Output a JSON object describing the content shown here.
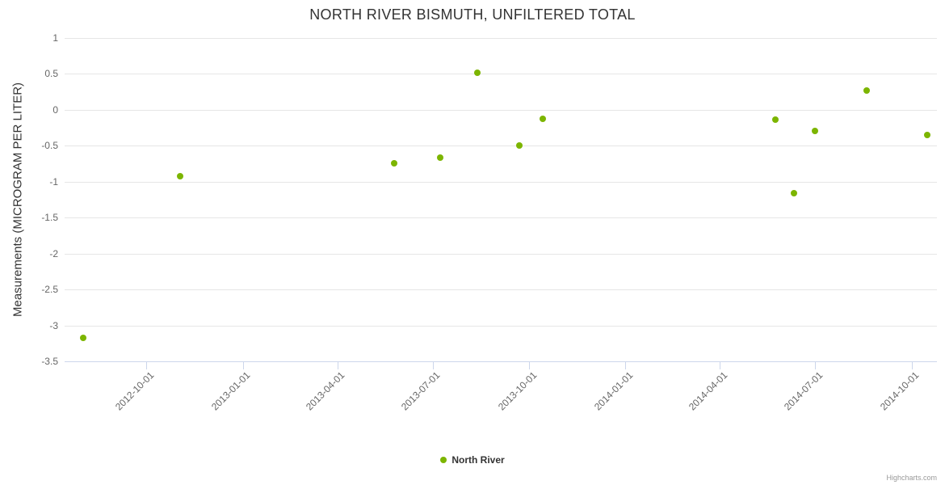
{
  "title": "NORTH RIVER BISMUTH, UNFILTERED TOTAL",
  "credits": "Highcharts.com",
  "legend": {
    "items": [
      {
        "label": "North River",
        "color": "#7cb500"
      }
    ]
  },
  "chart_data": {
    "type": "scatter",
    "title": "NORTH RIVER BISMUTH, UNFILTERED TOTAL",
    "xlabel": "",
    "ylabel": "Measurements (MICROGRAM PER LITER)",
    "ylim": [
      -3.5,
      1
    ],
    "y_ticks": [
      1,
      0.5,
      0,
      -0.5,
      -1,
      -1.5,
      -2,
      -2.5,
      -3,
      -3.5
    ],
    "x_ticks": [
      "2012-10-01",
      "2013-01-01",
      "2013-04-01",
      "2013-07-01",
      "2013-10-01",
      "2014-01-01",
      "2014-04-01",
      "2014-07-01",
      "2014-10-01"
    ],
    "x_range": [
      "2012-07-15",
      "2014-10-25"
    ],
    "grid": true,
    "legend_position": "bottom",
    "series": [
      {
        "name": "North River",
        "color": "#7cb500",
        "points": [
          {
            "date": "2012-08-02",
            "value": -3.17
          },
          {
            "date": "2012-11-02",
            "value": -0.92
          },
          {
            "date": "2013-05-25",
            "value": -0.74
          },
          {
            "date": "2013-07-08",
            "value": -0.67
          },
          {
            "date": "2013-08-13",
            "value": 0.52
          },
          {
            "date": "2013-09-22",
            "value": -0.5
          },
          {
            "date": "2013-10-14",
            "value": -0.13
          },
          {
            "date": "2014-05-24",
            "value": -0.14
          },
          {
            "date": "2014-06-11",
            "value": -1.16
          },
          {
            "date": "2014-07-01",
            "value": -0.29
          },
          {
            "date": "2014-08-19",
            "value": 0.27
          },
          {
            "date": "2014-10-16",
            "value": -0.35
          }
        ]
      }
    ]
  }
}
